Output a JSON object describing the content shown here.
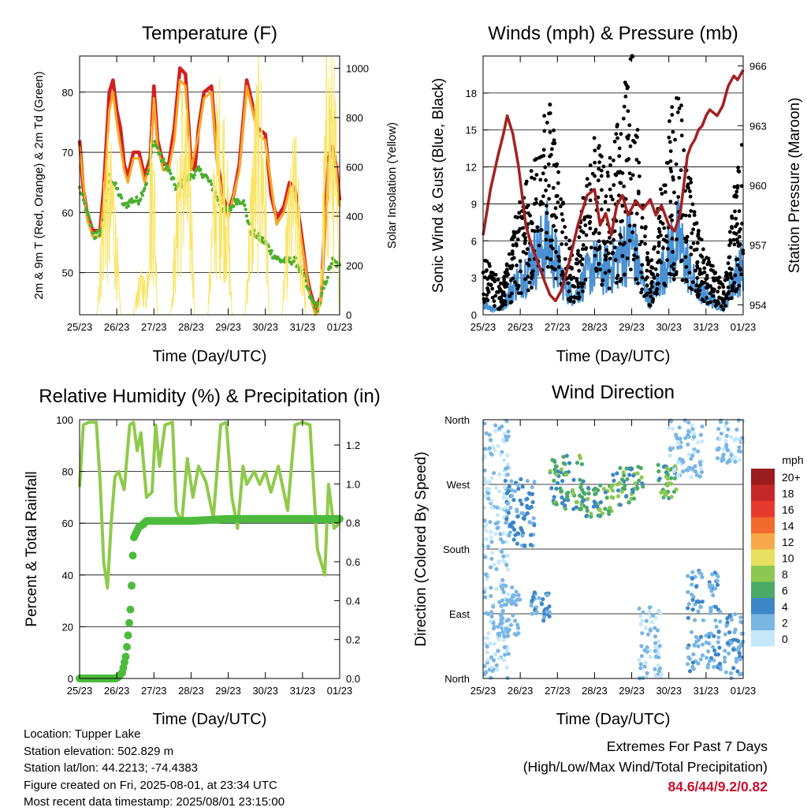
{
  "colors": {
    "red": "#d42020",
    "orange": "#f5a623",
    "green": "#4caf2f",
    "yellow": "#f9e464",
    "blue": "#4a90d2",
    "black": "#000000",
    "maroon": "#a52020",
    "rh_green": "#8fca4a",
    "precip_green": "#4cbb3c"
  },
  "x_tick_labels": [
    "25/23",
    "26/23",
    "27/23",
    "28/23",
    "29/23",
    "30/23",
    "31/23",
    "01/23"
  ],
  "x_axis_label": "Time (Day/UTC)",
  "info": {
    "location": "Location: Tupper Lake",
    "elevation": "Station elevation: 502.829 m",
    "latlon": "Station lat/lon: 44.2213; -74.4383",
    "created": "Figure created on Fri, 2025-08-01, at 23:34 UTC",
    "recent": "Most recent data timestamp: 2025/08/01 23:15:00"
  },
  "extremes": {
    "title": "Extremes For Past 7 Days",
    "subtitle": "(High/Low/Max Wind/Total Precipitation)",
    "values": "84.6/44/9.2/0.82"
  },
  "chart_data": [
    {
      "type": "line",
      "title": "Temperature (F)",
      "xlabel": "Time (Day/UTC)",
      "ylabel": "2m & 9m T (Red, Orange) & 2m Td (Green)",
      "ylabel_right": "Solar Insolation (Yellow)",
      "x_unit": "days since 25/23",
      "xlim": [
        0,
        7
      ],
      "ylim": [
        43,
        86
      ],
      "yticks": [
        50,
        60,
        70,
        80
      ],
      "y2lim": [
        0,
        1050
      ],
      "y2ticks": [
        0,
        200,
        400,
        600,
        800,
        1000
      ],
      "grid": true,
      "series": [
        {
          "name": "2m T",
          "color": "#d42020",
          "x": [
            0,
            0.1,
            0.2,
            0.35,
            0.55,
            0.65,
            0.8,
            0.9,
            1.0,
            1.1,
            1.2,
            1.3,
            1.45,
            1.6,
            1.75,
            1.9,
            2.0,
            2.1,
            2.25,
            2.4,
            2.55,
            2.7,
            2.85,
            3.0,
            3.1,
            3.2,
            3.35,
            3.55,
            3.7,
            3.85,
            4.0,
            4.15,
            4.3,
            4.5,
            4.65,
            4.8,
            5.0,
            5.15,
            5.3,
            5.5,
            5.65,
            5.8,
            6.0,
            6.1,
            6.2,
            6.35,
            6.5,
            6.55,
            6.62,
            6.7,
            6.8,
            6.9,
            7.0
          ],
          "y": [
            72,
            64,
            60,
            57,
            57,
            64,
            80,
            82,
            77,
            74,
            68,
            66,
            70,
            70,
            66,
            69,
            81,
            72,
            68,
            68,
            74,
            84,
            83,
            68,
            67,
            74,
            80,
            81,
            69,
            63,
            60,
            63,
            68,
            82,
            78,
            74,
            73,
            63,
            59,
            61,
            65,
            64,
            55,
            50,
            47,
            44,
            46,
            52,
            60,
            69,
            71,
            68,
            62
          ]
        },
        {
          "name": "9m T",
          "color": "#f5a623",
          "x": [
            0,
            0.2,
            0.35,
            0.55,
            0.65,
            0.8,
            0.9,
            1.0,
            1.2,
            1.3,
            1.45,
            1.6,
            1.75,
            1.9,
            2.0,
            2.1,
            2.25,
            2.4,
            2.55,
            2.7,
            2.85,
            3.0,
            3.2,
            3.35,
            3.55,
            3.7,
            3.85,
            4.0,
            4.3,
            4.5,
            4.65,
            4.8,
            5.0,
            5.3,
            5.5,
            5.65,
            5.8,
            6.0,
            6.2,
            6.35,
            6.5,
            6.62,
            6.7,
            6.8,
            6.9,
            7.0
          ],
          "y": [
            71,
            59,
            56,
            56,
            62,
            77,
            80,
            75,
            67,
            65,
            69,
            69,
            65,
            68,
            79,
            71,
            67,
            67,
            72,
            82,
            81,
            67,
            73,
            79,
            80,
            68,
            62,
            59,
            67,
            81,
            77,
            73,
            72,
            58,
            60,
            64,
            63,
            54,
            46,
            43,
            45,
            59,
            68,
            70,
            67,
            61
          ]
        },
        {
          "name": "2m Td",
          "color": "#4caf2f",
          "x": [
            0,
            0.2,
            0.4,
            0.6,
            0.8,
            1.0,
            1.2,
            1.4,
            1.6,
            1.8,
            2.0,
            2.2,
            2.4,
            2.6,
            2.8,
            3.0,
            3.2,
            3.4,
            3.6,
            3.8,
            4.0,
            4.2,
            4.4,
            4.6,
            4.8,
            5.0,
            5.2,
            5.4,
            5.6,
            5.8,
            6.0,
            6.2,
            6.4,
            6.6,
            6.8,
            7.0
          ],
          "y": [
            64,
            60,
            56,
            57,
            66,
            64,
            61,
            62,
            62,
            65,
            72,
            69,
            67,
            64,
            65,
            66,
            67,
            66,
            64,
            61,
            60,
            62,
            62,
            57,
            56,
            55,
            53,
            52,
            52,
            52,
            50,
            46,
            44,
            48,
            52,
            51
          ]
        },
        {
          "name": "Solar Insolation",
          "axis": "right",
          "color": "#f9e464",
          "x": [
            0,
            0.45,
            0.55,
            0.7,
            0.8,
            0.9,
            1.0,
            1.1,
            1.45,
            1.55,
            1.7,
            1.8,
            1.9,
            2.0,
            2.1,
            2.45,
            2.55,
            2.7,
            2.8,
            2.9,
            3.0,
            3.1,
            3.45,
            3.55,
            3.7,
            3.8,
            3.9,
            4.0,
            4.1,
            4.45,
            4.55,
            4.7,
            4.8,
            4.9,
            5.0,
            5.1,
            5.45,
            5.55,
            5.7,
            5.8,
            5.9,
            6.0,
            6.1,
            6.45,
            6.55,
            6.65,
            6.8,
            6.9,
            7.0
          ],
          "y": [
            0,
            0,
            250,
            720,
            600,
            650,
            350,
            0,
            0,
            120,
            180,
            100,
            700,
            760,
            0,
            0,
            300,
            800,
            950,
            700,
            600,
            0,
            0,
            400,
            850,
            900,
            800,
            500,
            0,
            0,
            350,
            800,
            950,
            900,
            700,
            0,
            0,
            300,
            600,
            700,
            500,
            300,
            0,
            0,
            500,
            1000,
            1050,
            800,
            0
          ]
        }
      ]
    },
    {
      "type": "line",
      "title": "Winds (mph) & Pressure (mb)",
      "xlabel": "Time (Day/UTC)",
      "ylabel": "Sonic Wind & Gust (Blue, Black)",
      "ylabel_right": "Station Pressure (Maroon)",
      "x_unit": "days since 25/23",
      "xlim": [
        0,
        7
      ],
      "ylim": [
        0,
        21
      ],
      "yticks": [
        0,
        3,
        6,
        9,
        12,
        15,
        18
      ],
      "y2lim": [
        953.5,
        966.5
      ],
      "y2ticks": [
        954,
        957,
        960,
        963,
        966
      ],
      "grid": true,
      "series": [
        {
          "name": "Sonic Wind",
          "color": "#4a90d2",
          "x": [
            0,
            0.25,
            0.5,
            0.75,
            1.0,
            1.25,
            1.5,
            1.75,
            2.0,
            2.25,
            2.5,
            2.75,
            3.0,
            3.25,
            3.5,
            3.75,
            4.0,
            4.25,
            4.5,
            4.75,
            5.0,
            5.25,
            5.5,
            5.75,
            6.0,
            6.25,
            6.5,
            6.75,
            7.0
          ],
          "y": [
            1,
            0.5,
            0.5,
            2,
            3,
            4,
            5,
            6,
            4,
            2,
            1.5,
            3,
            4,
            3.5,
            4,
            5,
            6,
            3,
            1,
            3,
            5,
            6,
            4,
            2,
            1.5,
            1,
            0.5,
            3,
            4
          ]
        },
        {
          "name": "Gust",
          "color": "#000000",
          "x": [
            0,
            0.25,
            0.5,
            0.75,
            1.0,
            1.25,
            1.5,
            1.75,
            2.0,
            2.25,
            2.5,
            2.75,
            3.0,
            3.25,
            3.5,
            3.75,
            4.0,
            4.25,
            4.5,
            4.75,
            5.0,
            5.25,
            5.5,
            5.75,
            6.0,
            6.25,
            6.5,
            6.75,
            7.0
          ],
          "y": [
            5,
            3,
            2,
            5,
            8,
            9,
            11,
            15,
            10,
            6,
            4,
            9,
            12,
            10,
            11,
            14,
            18,
            9,
            3,
            8,
            13,
            15,
            11,
            6,
            4,
            3,
            2,
            8,
            14
          ]
        },
        {
          "name": "Station Pressure",
          "axis": "right",
          "color": "#a52020",
          "x": [
            0,
            0.2,
            0.4,
            0.55,
            0.65,
            0.8,
            0.95,
            1.05,
            1.15,
            1.3,
            1.5,
            1.65,
            1.8,
            1.95,
            2.1,
            2.3,
            2.55,
            2.8,
            3.0,
            3.15,
            3.3,
            3.45,
            3.6,
            3.75,
            3.9,
            4.1,
            4.3,
            4.5,
            4.65,
            4.8,
            5.0,
            5.15,
            5.3,
            5.4,
            5.5,
            5.6,
            5.7,
            5.8,
            5.9,
            6.0,
            6.1,
            6.3,
            6.45,
            6.6,
            6.75,
            6.85,
            7.0
          ],
          "y": [
            957.5,
            959.8,
            961.5,
            962.6,
            963.5,
            962.6,
            961,
            959.5,
            958,
            957,
            956,
            955.2,
            954.5,
            954.2,
            954.7,
            956,
            958,
            959.5,
            959.8,
            958,
            958.6,
            957.5,
            959,
            959.5,
            958.5,
            959.2,
            958.8,
            959.3,
            958.5,
            959,
            958,
            957.7,
            958.5,
            960,
            961.5,
            962,
            962.3,
            962.8,
            963,
            963.5,
            963.8,
            963.5,
            964,
            965,
            965.5,
            965.3,
            965.8
          ]
        }
      ]
    },
    {
      "type": "line",
      "title": "Relative Humidity (%) & Precipitation (in)",
      "xlabel": "Time (Day/UTC)",
      "ylabel": "Percent & Total Rainfall",
      "x_unit": "days since 25/23",
      "xlim": [
        0,
        7
      ],
      "ylim": [
        0,
        100
      ],
      "yticks": [
        0,
        20,
        40,
        60,
        80,
        100
      ],
      "y2lim": [
        0,
        1.33
      ],
      "y2ticks": [
        0.0,
        0.2,
        0.4,
        0.6,
        0.8,
        1.0,
        1.2
      ],
      "grid": true,
      "series": [
        {
          "name": "Relative Humidity",
          "color": "#8fca4a",
          "x": [
            0,
            0.1,
            0.25,
            0.45,
            0.55,
            0.65,
            0.75,
            0.85,
            0.95,
            1.05,
            1.2,
            1.35,
            1.45,
            1.55,
            1.65,
            1.8,
            1.95,
            2.05,
            2.15,
            2.3,
            2.5,
            2.6,
            2.75,
            2.9,
            3.05,
            3.2,
            3.4,
            3.6,
            3.8,
            3.95,
            4.1,
            4.25,
            4.4,
            4.5,
            4.7,
            4.85,
            5.0,
            5.15,
            5.35,
            5.6,
            5.8,
            6.0,
            6.2,
            6.4,
            6.5,
            6.6,
            6.7,
            6.85,
            7.0
          ],
          "y": [
            74,
            98,
            99,
            99,
            77,
            45,
            35,
            60,
            78,
            80,
            73,
            98,
            99,
            88,
            95,
            70,
            72,
            98,
            82,
            98,
            99,
            65,
            60,
            85,
            70,
            82,
            76,
            62,
            98,
            99,
            70,
            58,
            82,
            75,
            80,
            75,
            80,
            72,
            82,
            65,
            98,
            99,
            98,
            50,
            45,
            40,
            75,
            58,
            60
          ]
        },
        {
          "name": "Total Rainfall",
          "axis": "right",
          "color": "#4cbb3c",
          "x": [
            0,
            1.0,
            1.15,
            1.25,
            1.32,
            1.38,
            1.45,
            1.5,
            1.55,
            1.6,
            1.7,
            1.75,
            1.8,
            2.0,
            3.0,
            4.0,
            5.0,
            6.0,
            7.0
          ],
          "y": [
            0,
            0,
            0.03,
            0.12,
            0.25,
            0.38,
            0.72,
            0.74,
            0.76,
            0.78,
            0.79,
            0.8,
            0.81,
            0.81,
            0.81,
            0.82,
            0.82,
            0.82,
            0.82
          ]
        }
      ]
    },
    {
      "type": "scatter",
      "title": "Wind Direction",
      "xlabel": "Time (Day/UTC)",
      "ylabel": "Direction (Colored By Speed)",
      "x_unit": "days since 25/23",
      "xlim": [
        0,
        7
      ],
      "ytick_labels": [
        "North",
        "East",
        "South",
        "West",
        "North"
      ],
      "ylim": [
        0,
        360
      ],
      "grid": true,
      "legend_title": "mph",
      "legend_labels": [
        "20+",
        "18",
        "16",
        "14",
        "12",
        "10",
        "8",
        "6",
        "4",
        "2",
        "0"
      ],
      "legend_colors": [
        "#9b1c1c",
        "#c62828",
        "#e63a2e",
        "#f26a2c",
        "#f8a848",
        "#e8e060",
        "#8cc850",
        "#4aaa66",
        "#3d86c6",
        "#7ab6e4",
        "#c4e8fa"
      ],
      "clusters": [
        {
          "x": [
            0.0,
            0.7
          ],
          "dir": [
            0,
            360
          ],
          "speed": [
            0,
            2
          ]
        },
        {
          "x": [
            0.6,
            1.4
          ],
          "dir": [
            180,
            280
          ],
          "speed": [
            2,
            5
          ]
        },
        {
          "x": [
            0.4,
            1.0
          ],
          "dir": [
            60,
            130
          ],
          "speed": [
            1,
            3
          ]
        },
        {
          "x": [
            1.3,
            1.8
          ],
          "dir": [
            80,
            120
          ],
          "speed": [
            2,
            5
          ]
        },
        {
          "x": [
            1.8,
            2.7
          ],
          "dir": [
            235,
            310
          ],
          "speed": [
            3,
            8
          ]
        },
        {
          "x": [
            2.6,
            3.5
          ],
          "dir": [
            225,
            270
          ],
          "speed": [
            4,
            8
          ]
        },
        {
          "x": [
            3.4,
            4.3
          ],
          "dir": [
            240,
            295
          ],
          "speed": [
            4,
            9
          ]
        },
        {
          "x": [
            4.2,
            4.8
          ],
          "dir": [
            0,
            100
          ],
          "speed": [
            0,
            2
          ]
        },
        {
          "x": [
            4.7,
            5.2
          ],
          "dir": [
            250,
            300
          ],
          "speed": [
            4,
            9
          ]
        },
        {
          "x": [
            5.0,
            5.9
          ],
          "dir": [
            280,
            360
          ],
          "speed": [
            0,
            3
          ]
        },
        {
          "x": [
            5.5,
            6.4
          ],
          "dir": [
            10,
            150
          ],
          "speed": [
            1,
            4
          ]
        },
        {
          "x": [
            6.3,
            7.0
          ],
          "dir": [
            300,
            360
          ],
          "speed": [
            0,
            3
          ]
        },
        {
          "x": [
            6.5,
            7.0
          ],
          "dir": [
            0,
            90
          ],
          "speed": [
            1,
            4
          ]
        }
      ]
    }
  ]
}
